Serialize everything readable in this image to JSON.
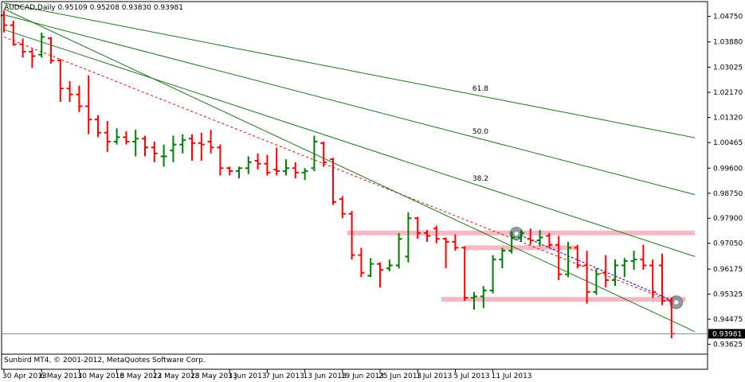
{
  "chart_data": {
    "type": "bar",
    "title": "AUDCAD,Daily  0.95109 0.95208 0.93830 0.93981",
    "copyright": "Sunbird MT4, © 2001-2012, MetaQuotes Software Corp.",
    "current_price": 0.93981,
    "current_price_label": "0.93981",
    "ylim": [
      0.9329,
      1.0525
    ],
    "y_ticks": [
      1.0475,
      1.0388,
      1.03025,
      1.0217,
      1.0132,
      1.00465,
      0.996,
      0.9875,
      0.979,
      0.9705,
      0.96175,
      0.95325,
      0.94475,
      0.93625
    ],
    "y_tick_labels": [
      "1.04750",
      "1.03880",
      "1.03025",
      "1.02170",
      "1.01320",
      "1.00465",
      "0.99600",
      "0.98750",
      "0.97900",
      "0.97050",
      "0.96175",
      "0.95325",
      "0.94475",
      "0.93625"
    ],
    "x_tick_index": [
      0,
      4,
      8,
      12,
      16,
      20,
      24,
      28,
      32,
      36,
      40,
      44,
      48,
      52
    ],
    "x_tick_labels": [
      "30 Apr 2013",
      "6 May 2013",
      "10 May 2013",
      "16 May 2013",
      "22 May 2013",
      "28 May 2013",
      "3 Jun 2013",
      "7 Jun 2013",
      "13 Jun 2013",
      "19 Jun 2013",
      "25 Jun 2013",
      "1 Jul 2013",
      "5 Jul 2013",
      "11 Jul 2013"
    ],
    "bull_color": "#008000",
    "bear_color": "#ff0000",
    "ohlc": [
      {
        "o": 1.0478,
        "h": 1.0495,
        "l": 1.042,
        "c": 1.0445
      },
      {
        "o": 1.0445,
        "h": 1.046,
        "l": 1.0375,
        "c": 1.038
      },
      {
        "o": 1.038,
        "h": 1.04,
        "l": 1.0335,
        "c": 1.0355
      },
      {
        "o": 1.0355,
        "h": 1.0365,
        "l": 1.03,
        "c": 1.034
      },
      {
        "o": 1.0345,
        "h": 1.042,
        "l": 1.0335,
        "c": 1.0405
      },
      {
        "o": 1.04,
        "h": 1.0405,
        "l": 1.0315,
        "c": 1.0325
      },
      {
        "o": 1.0325,
        "h": 1.033,
        "l": 1.0185,
        "c": 1.023
      },
      {
        "o": 1.023,
        "h": 1.0255,
        "l": 1.0185,
        "c": 1.021
      },
      {
        "o": 1.021,
        "h": 1.024,
        "l": 1.015,
        "c": 1.017
      },
      {
        "o": 1.017,
        "h": 1.0275,
        "l": 1.0075,
        "c": 1.0125
      },
      {
        "o": 1.0125,
        "h": 1.014,
        "l": 1.0065,
        "c": 1.008
      },
      {
        "o": 1.008,
        "h": 1.012,
        "l": 1.0015,
        "c": 1.005
      },
      {
        "o": 1.005,
        "h": 1.0095,
        "l": 1.004,
        "c": 1.0065
      },
      {
        "o": 1.0065,
        "h": 1.0085,
        "l": 1.004,
        "c": 1.005
      },
      {
        "o": 1.005,
        "h": 1.009,
        "l": 1.0,
        "c": 1.006
      },
      {
        "o": 1.006,
        "h": 1.007,
        "l": 1.0,
        "c": 1.003
      },
      {
        "o": 1.003,
        "h": 1.005,
        "l": 0.998,
        "c": 1.001
      },
      {
        "o": 1.0,
        "h": 1.004,
        "l": 0.9965,
        "c": 1.0
      },
      {
        "o": 1.002,
        "h": 1.007,
        "l": 0.998,
        "c": 1.004
      },
      {
        "o": 1.004,
        "h": 1.0075,
        "l": 1.001,
        "c": 1.0055
      },
      {
        "o": 1.006,
        "h": 1.0075,
        "l": 0.9985,
        "c": 1.0045
      },
      {
        "o": 1.0045,
        "h": 1.008,
        "l": 0.9985,
        "c": 1.004
      },
      {
        "o": 1.005,
        "h": 1.009,
        "l": 1.001,
        "c": 1.003
      },
      {
        "o": 1.003,
        "h": 1.004,
        "l": 0.9935,
        "c": 0.996
      },
      {
        "o": 0.996,
        "h": 0.9965,
        "l": 0.9935,
        "c": 0.995
      },
      {
        "o": 0.995,
        "h": 0.9965,
        "l": 0.9925,
        "c": 0.996
      },
      {
        "o": 0.996,
        "h": 1.0,
        "l": 0.994,
        "c": 0.998
      },
      {
        "o": 0.9985,
        "h": 1.001,
        "l": 0.9955,
        "c": 0.9975
      },
      {
        "o": 0.9975,
        "h": 1.0005,
        "l": 0.9935,
        "c": 0.9945
      },
      {
        "o": 0.9955,
        "h": 1.003,
        "l": 0.9935,
        "c": 0.995
      },
      {
        "o": 0.995,
        "h": 0.999,
        "l": 0.9935,
        "c": 0.996
      },
      {
        "o": 0.996,
        "h": 0.998,
        "l": 0.9925,
        "c": 0.9945
      },
      {
        "o": 0.9945,
        "h": 0.996,
        "l": 0.992,
        "c": 0.995
      },
      {
        "o": 0.996,
        "h": 1.007,
        "l": 0.995,
        "c": 1.005
      },
      {
        "o": 1.0045,
        "h": 1.005,
        "l": 0.9965,
        "c": 0.998
      },
      {
        "o": 0.999,
        "h": 0.9995,
        "l": 0.9835,
        "c": 0.9845
      },
      {
        "o": 0.9855,
        "h": 0.9865,
        "l": 0.979,
        "c": 0.9805
      },
      {
        "o": 0.9805,
        "h": 0.9815,
        "l": 0.965,
        "c": 0.9665
      },
      {
        "o": 0.9665,
        "h": 0.969,
        "l": 0.959,
        "c": 0.9605
      },
      {
        "o": 0.9595,
        "h": 0.9655,
        "l": 0.959,
        "c": 0.9635
      },
      {
        "o": 0.9635,
        "h": 0.964,
        "l": 0.9555,
        "c": 0.9615
      },
      {
        "o": 0.962,
        "h": 0.965,
        "l": 0.961,
        "c": 0.963
      },
      {
        "o": 0.963,
        "h": 0.974,
        "l": 0.962,
        "c": 0.972
      },
      {
        "o": 0.966,
        "h": 0.981,
        "l": 0.964,
        "c": 0.979
      },
      {
        "o": 0.979,
        "h": 0.9795,
        "l": 0.972,
        "c": 0.974
      },
      {
        "o": 0.974,
        "h": 0.975,
        "l": 0.971,
        "c": 0.973
      },
      {
        "o": 0.9755,
        "h": 0.9765,
        "l": 0.9705,
        "c": 0.972
      },
      {
        "o": 0.972,
        "h": 0.9725,
        "l": 0.962,
        "c": 0.971
      },
      {
        "o": 0.971,
        "h": 0.9735,
        "l": 0.968,
        "c": 0.969
      },
      {
        "o": 0.969,
        "h": 0.9695,
        "l": 0.951,
        "c": 0.952
      },
      {
        "o": 0.952,
        "h": 0.954,
        "l": 0.948,
        "c": 0.9525
      },
      {
        "o": 0.9525,
        "h": 0.956,
        "l": 0.9485,
        "c": 0.9545
      },
      {
        "o": 0.9545,
        "h": 0.9665,
        "l": 0.9535,
        "c": 0.965
      },
      {
        "o": 0.965,
        "h": 0.969,
        "l": 0.962,
        "c": 0.968
      },
      {
        "o": 0.968,
        "h": 0.9745,
        "l": 0.967,
        "c": 0.9725
      },
      {
        "o": 0.9725,
        "h": 0.975,
        "l": 0.971,
        "c": 0.974
      },
      {
        "o": 0.972,
        "h": 0.9755,
        "l": 0.97,
        "c": 0.9715
      },
      {
        "o": 0.9715,
        "h": 0.975,
        "l": 0.9695,
        "c": 0.9725
      },
      {
        "o": 0.973,
        "h": 0.974,
        "l": 0.969,
        "c": 0.97
      },
      {
        "o": 0.97,
        "h": 0.973,
        "l": 0.958,
        "c": 0.96
      },
      {
        "o": 0.96,
        "h": 0.971,
        "l": 0.959,
        "c": 0.969
      },
      {
        "o": 0.969,
        "h": 0.97,
        "l": 0.962,
        "c": 0.963
      },
      {
        "o": 0.963,
        "h": 0.968,
        "l": 0.95,
        "c": 0.954
      },
      {
        "o": 0.954,
        "h": 0.962,
        "l": 0.953,
        "c": 0.96
      },
      {
        "o": 0.9605,
        "h": 0.9665,
        "l": 0.9555,
        "c": 0.958
      },
      {
        "o": 0.958,
        "h": 0.965,
        "l": 0.956,
        "c": 0.963
      },
      {
        "o": 0.963,
        "h": 0.9655,
        "l": 0.959,
        "c": 0.9645
      },
      {
        "o": 0.9645,
        "h": 0.968,
        "l": 0.9615,
        "c": 0.965
      },
      {
        "o": 0.965,
        "h": 0.97,
        "l": 0.9615,
        "c": 0.963
      },
      {
        "o": 0.963,
        "h": 0.965,
        "l": 0.952,
        "c": 0.954
      },
      {
        "o": 0.963,
        "h": 0.967,
        "l": 0.9495,
        "c": 0.951
      },
      {
        "o": 0.95109,
        "h": 0.95208,
        "l": 0.9383,
        "c": 0.93981
      }
    ],
    "fan_labels": [
      "61.8",
      "50.0",
      "38.2"
    ],
    "fan_lines": [
      {
        "label": "61.8",
        "x1": 0,
        "y1": 1.052,
        "x2": 73.5,
        "y2": 1.0063
      },
      {
        "label": "50.0",
        "x1": 0,
        "y1": 1.048,
        "x2": 73.5,
        "y2": 0.987
      },
      {
        "label": "38.2",
        "x1": 0,
        "y1": 1.043,
        "x2": 73.5,
        "y2": 0.966
      },
      {
        "label": "",
        "x1": 0,
        "y1": 1.05,
        "x2": 73.5,
        "y2": 0.9405
      }
    ],
    "trend_line": {
      "x1": 0,
      "y1": 1.0405,
      "x2": 72,
      "y2": 0.9495
    },
    "zones": [
      {
        "x1": 36.5,
        "x2": 73.5,
        "y": 0.974
      },
      {
        "x1": 49,
        "x2": 61,
        "y": 0.969
      },
      {
        "x1": 46.5,
        "x2": 72.5,
        "y": 0.9515
      }
    ],
    "short_line": {
      "x1": 54.5,
      "y1": 0.9738,
      "x2": 71.5,
      "y2": 0.9505
    },
    "markers": [
      {
        "x": 54.5,
        "y": 0.9738
      },
      {
        "x": 71.5,
        "y": 0.9505
      }
    ]
  }
}
